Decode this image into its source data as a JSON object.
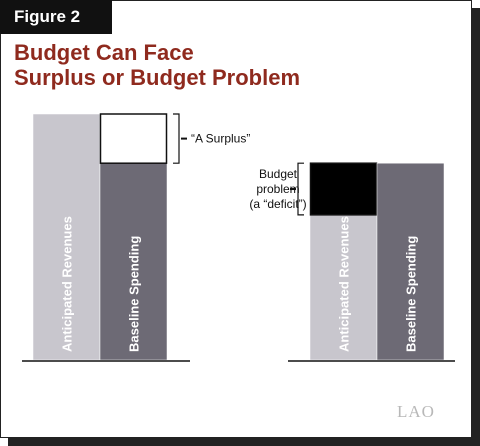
{
  "figure_label": "Figure 2",
  "title_line1": "Budget Can Face",
  "title_line2": "Surplus or Budget Problem",
  "logo_text": "LAO",
  "colors": {
    "title": "#8f2a1e",
    "revenues": "#c8c6cd",
    "spending": "#6d6a75",
    "surplus": "#ffffff",
    "deficit": "#000000"
  },
  "chart_data": {
    "type": "bar",
    "title": "Budget Can Face Surplus or Budget Problem",
    "scenarios": [
      {
        "bars": [
          {
            "label": "Anticipated Revenues",
            "value": 100
          },
          {
            "label": "Baseline Spending",
            "value": 80,
            "gap": {
              "value": 20,
              "kind": "surplus"
            }
          }
        ],
        "annotation": "“A Surplus”"
      },
      {
        "bars": [
          {
            "label": "Anticipated Revenues",
            "value": 59,
            "gap": {
              "value": 21,
              "kind": "deficit"
            }
          },
          {
            "label": "Baseline Spending",
            "value": 80
          }
        ],
        "annotation_lines": [
          "Budget",
          "problem",
          "(a “deficit”)"
        ]
      }
    ]
  }
}
